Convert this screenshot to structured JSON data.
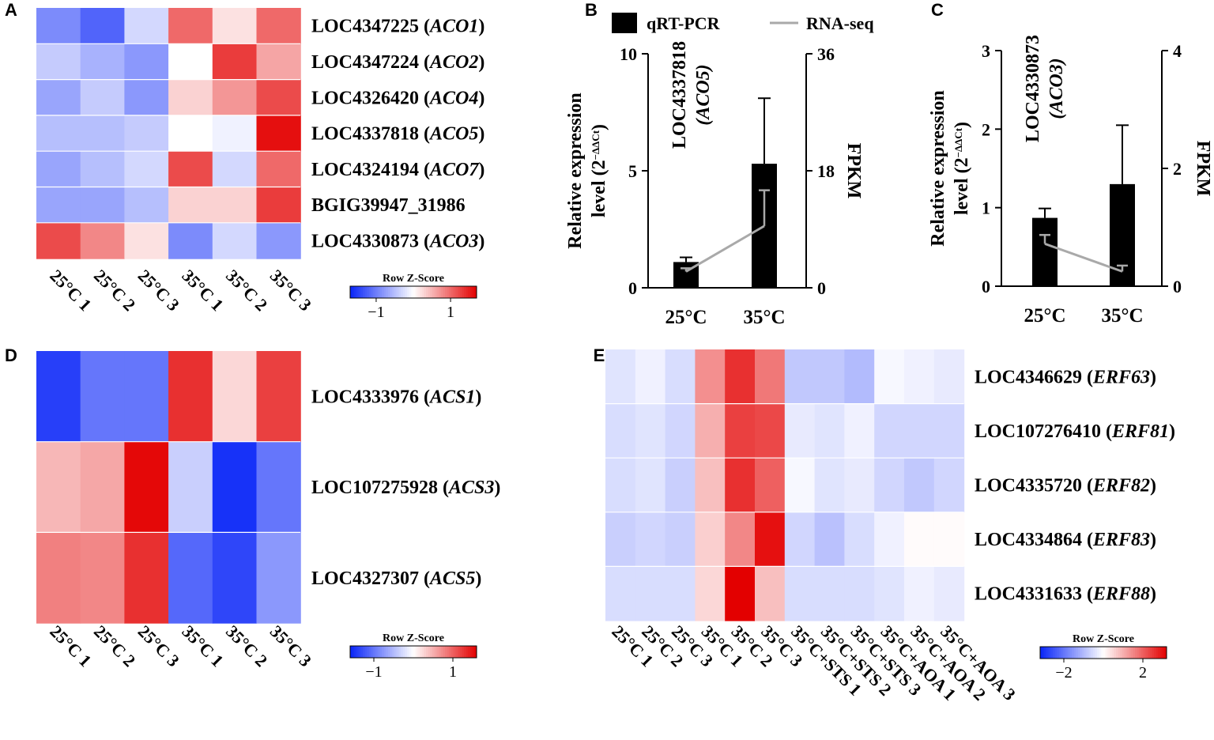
{
  "figure": {
    "panels": [
      "A",
      "B",
      "C",
      "D",
      "E"
    ]
  },
  "chart_data": [
    {
      "id": "A",
      "type": "heatmap",
      "columns": [
        "25°C 1",
        "25°C 2",
        "25°C 3",
        "35°C 1",
        "35°C 2",
        "35°C 3"
      ],
      "rows": [
        {
          "id": "LOC4347225",
          "gene": "ACO1"
        },
        {
          "id": "LOC4347224",
          "gene": "ACO2"
        },
        {
          "id": "LOC4326420",
          "gene": "ACO4"
        },
        {
          "id": "LOC4337818",
          "gene": "ACO5"
        },
        {
          "id": "LOC4324194",
          "gene": "ACO7"
        },
        {
          "id": "BGIG39947_31986",
          "gene": ""
        },
        {
          "id": "LOC4330873",
          "gene": "ACO3"
        }
      ],
      "values": [
        [
          -0.9,
          -1.2,
          -0.3,
          1.0,
          0.2,
          1.0
        ],
        [
          -0.4,
          -0.6,
          -0.8,
          0.0,
          1.3,
          0.6
        ],
        [
          -0.7,
          -0.4,
          -0.8,
          0.3,
          0.7,
          1.2
        ],
        [
          -0.5,
          -0.5,
          -0.4,
          0.0,
          -0.1,
          1.6
        ],
        [
          -0.7,
          -0.5,
          -0.3,
          1.2,
          -0.3,
          1.0
        ],
        [
          -0.7,
          -0.7,
          -0.5,
          0.3,
          0.3,
          1.3
        ],
        [
          1.2,
          0.8,
          0.2,
          -0.9,
          -0.3,
          -0.8
        ]
      ],
      "scale_min": -1.7,
      "scale_max": 1.7,
      "legend": {
        "title": "Row Z-Score",
        "ticks": [
          -1,
          1
        ],
        "tick_labels": [
          "−1",
          "1"
        ]
      }
    },
    {
      "id": "B",
      "type": "bar",
      "title": "LOC4337818 (ACO5)",
      "title_gene": "LOC4337818",
      "title_symbol": "(ACO5)",
      "categories": [
        "25°C",
        "35°C"
      ],
      "series": [
        {
          "name": "qRT-PCR",
          "values": [
            1.1,
            5.3
          ],
          "error": [
            0.2,
            2.8
          ],
          "axis": "left"
        },
        {
          "name": "RNA-seq",
          "values": [
            2.5,
            9.5
          ],
          "error": [
            0.5,
            5.5
          ],
          "axis": "right"
        }
      ],
      "ylabel_line1": "Relative expression",
      "ylabel_line2": "level (2",
      "ylabel_exp": "−ΔΔCt",
      "ylabel_close": ")",
      "ylim": [
        0,
        10
      ],
      "yticks": [
        0,
        5,
        10
      ],
      "y2label": "FPKM",
      "y2lim": [
        0,
        36
      ],
      "y2ticks": [
        0,
        18,
        36
      ]
    },
    {
      "id": "C",
      "type": "bar",
      "title": "LOC4330873 (ACO3)",
      "title_gene": "LOC4330873",
      "title_symbol": "(ACO3)",
      "categories": [
        "25°C",
        "35°C"
      ],
      "series": [
        {
          "name": "qRT-PCR",
          "values": [
            0.87,
            1.3
          ],
          "error": [
            0.12,
            0.75
          ],
          "axis": "left"
        },
        {
          "name": "RNA-seq",
          "values": [
            0.72,
            0.25
          ],
          "error": [
            0.15,
            0.1
          ],
          "axis": "right"
        }
      ],
      "ylabel_line1": "Relative expression",
      "ylabel_line2": "level (2",
      "ylabel_exp": "−ΔΔCt",
      "ylabel_close": ")",
      "ylim": [
        0,
        3
      ],
      "yticks": [
        0,
        1,
        2,
        3
      ],
      "y2label": "FPKM",
      "y2lim": [
        0,
        4
      ],
      "y2ticks": [
        0,
        2,
        4
      ]
    },
    {
      "id": "D",
      "type": "heatmap",
      "columns": [
        "25°C 1",
        "25°C 2",
        "25°C 3",
        "35°C 1",
        "35°C 2",
        "35°C 3"
      ],
      "rows": [
        {
          "id": "LOC4333976",
          "gene": "ACS1"
        },
        {
          "id": "LOC107275928",
          "gene": "ACS3"
        },
        {
          "id": "LOC4327307",
          "gene": "ACS5"
        }
      ],
      "values": [
        [
          -1.4,
          -1.0,
          -1.0,
          1.3,
          0.25,
          1.2
        ],
        [
          0.45,
          0.55,
          1.55,
          -0.35,
          -1.5,
          -1.0
        ],
        [
          0.8,
          0.75,
          1.3,
          -1.1,
          -1.35,
          -0.75
        ]
      ],
      "scale_min": -1.6,
      "scale_max": 1.6,
      "legend": {
        "title": "Row Z-Score",
        "ticks": [
          -1,
          1
        ],
        "tick_labels": [
          "−1",
          "1"
        ]
      }
    },
    {
      "id": "E",
      "type": "heatmap",
      "columns": [
        "25°C 1",
        "25°C 2",
        "25°C 3",
        "35°C 1",
        "35°C 2",
        "35°C 3",
        "35°C+STS 1",
        "35°C+STS 2",
        "35°C+STS 3",
        "35°C+AOA 1",
        "35°C+AOA 2",
        "35°C+AOA 3"
      ],
      "rows": [
        {
          "id": "LOC4346629",
          "gene": "ERF63"
        },
        {
          "id": "LOC107276410",
          "gene": "ERF81"
        },
        {
          "id": "LOC4335720",
          "gene": "ERF82"
        },
        {
          "id": "LOC4334864",
          "gene": "ERF83"
        },
        {
          "id": "LOC4331633",
          "gene": "ERF88"
        }
      ],
      "values": [
        [
          -0.4,
          -0.2,
          -0.5,
          1.4,
          2.6,
          1.7,
          -0.8,
          -0.8,
          -1.0,
          -0.1,
          -0.2,
          -0.3
        ],
        [
          -0.5,
          -0.4,
          -0.6,
          1.0,
          2.4,
          2.3,
          -0.3,
          -0.4,
          -0.2,
          -0.6,
          -0.6,
          -0.6
        ],
        [
          -0.5,
          -0.4,
          -0.7,
          0.8,
          2.6,
          2.0,
          -0.1,
          -0.4,
          -0.3,
          -0.6,
          -0.8,
          -0.6
        ],
        [
          -0.7,
          -0.6,
          -0.7,
          0.6,
          1.5,
          3.0,
          -0.6,
          -0.9,
          -0.5,
          -0.2,
          0.05,
          0.05
        ],
        [
          -0.5,
          -0.5,
          -0.5,
          0.5,
          3.2,
          0.8,
          -0.5,
          -0.5,
          -0.5,
          -0.4,
          -0.2,
          -0.3
        ]
      ],
      "scale_min": -3.2,
      "scale_max": 3.2,
      "legend": {
        "title": "Row Z-Score",
        "ticks": [
          -2,
          2
        ],
        "tick_labels": [
          "−2",
          "2"
        ]
      }
    }
  ]
}
